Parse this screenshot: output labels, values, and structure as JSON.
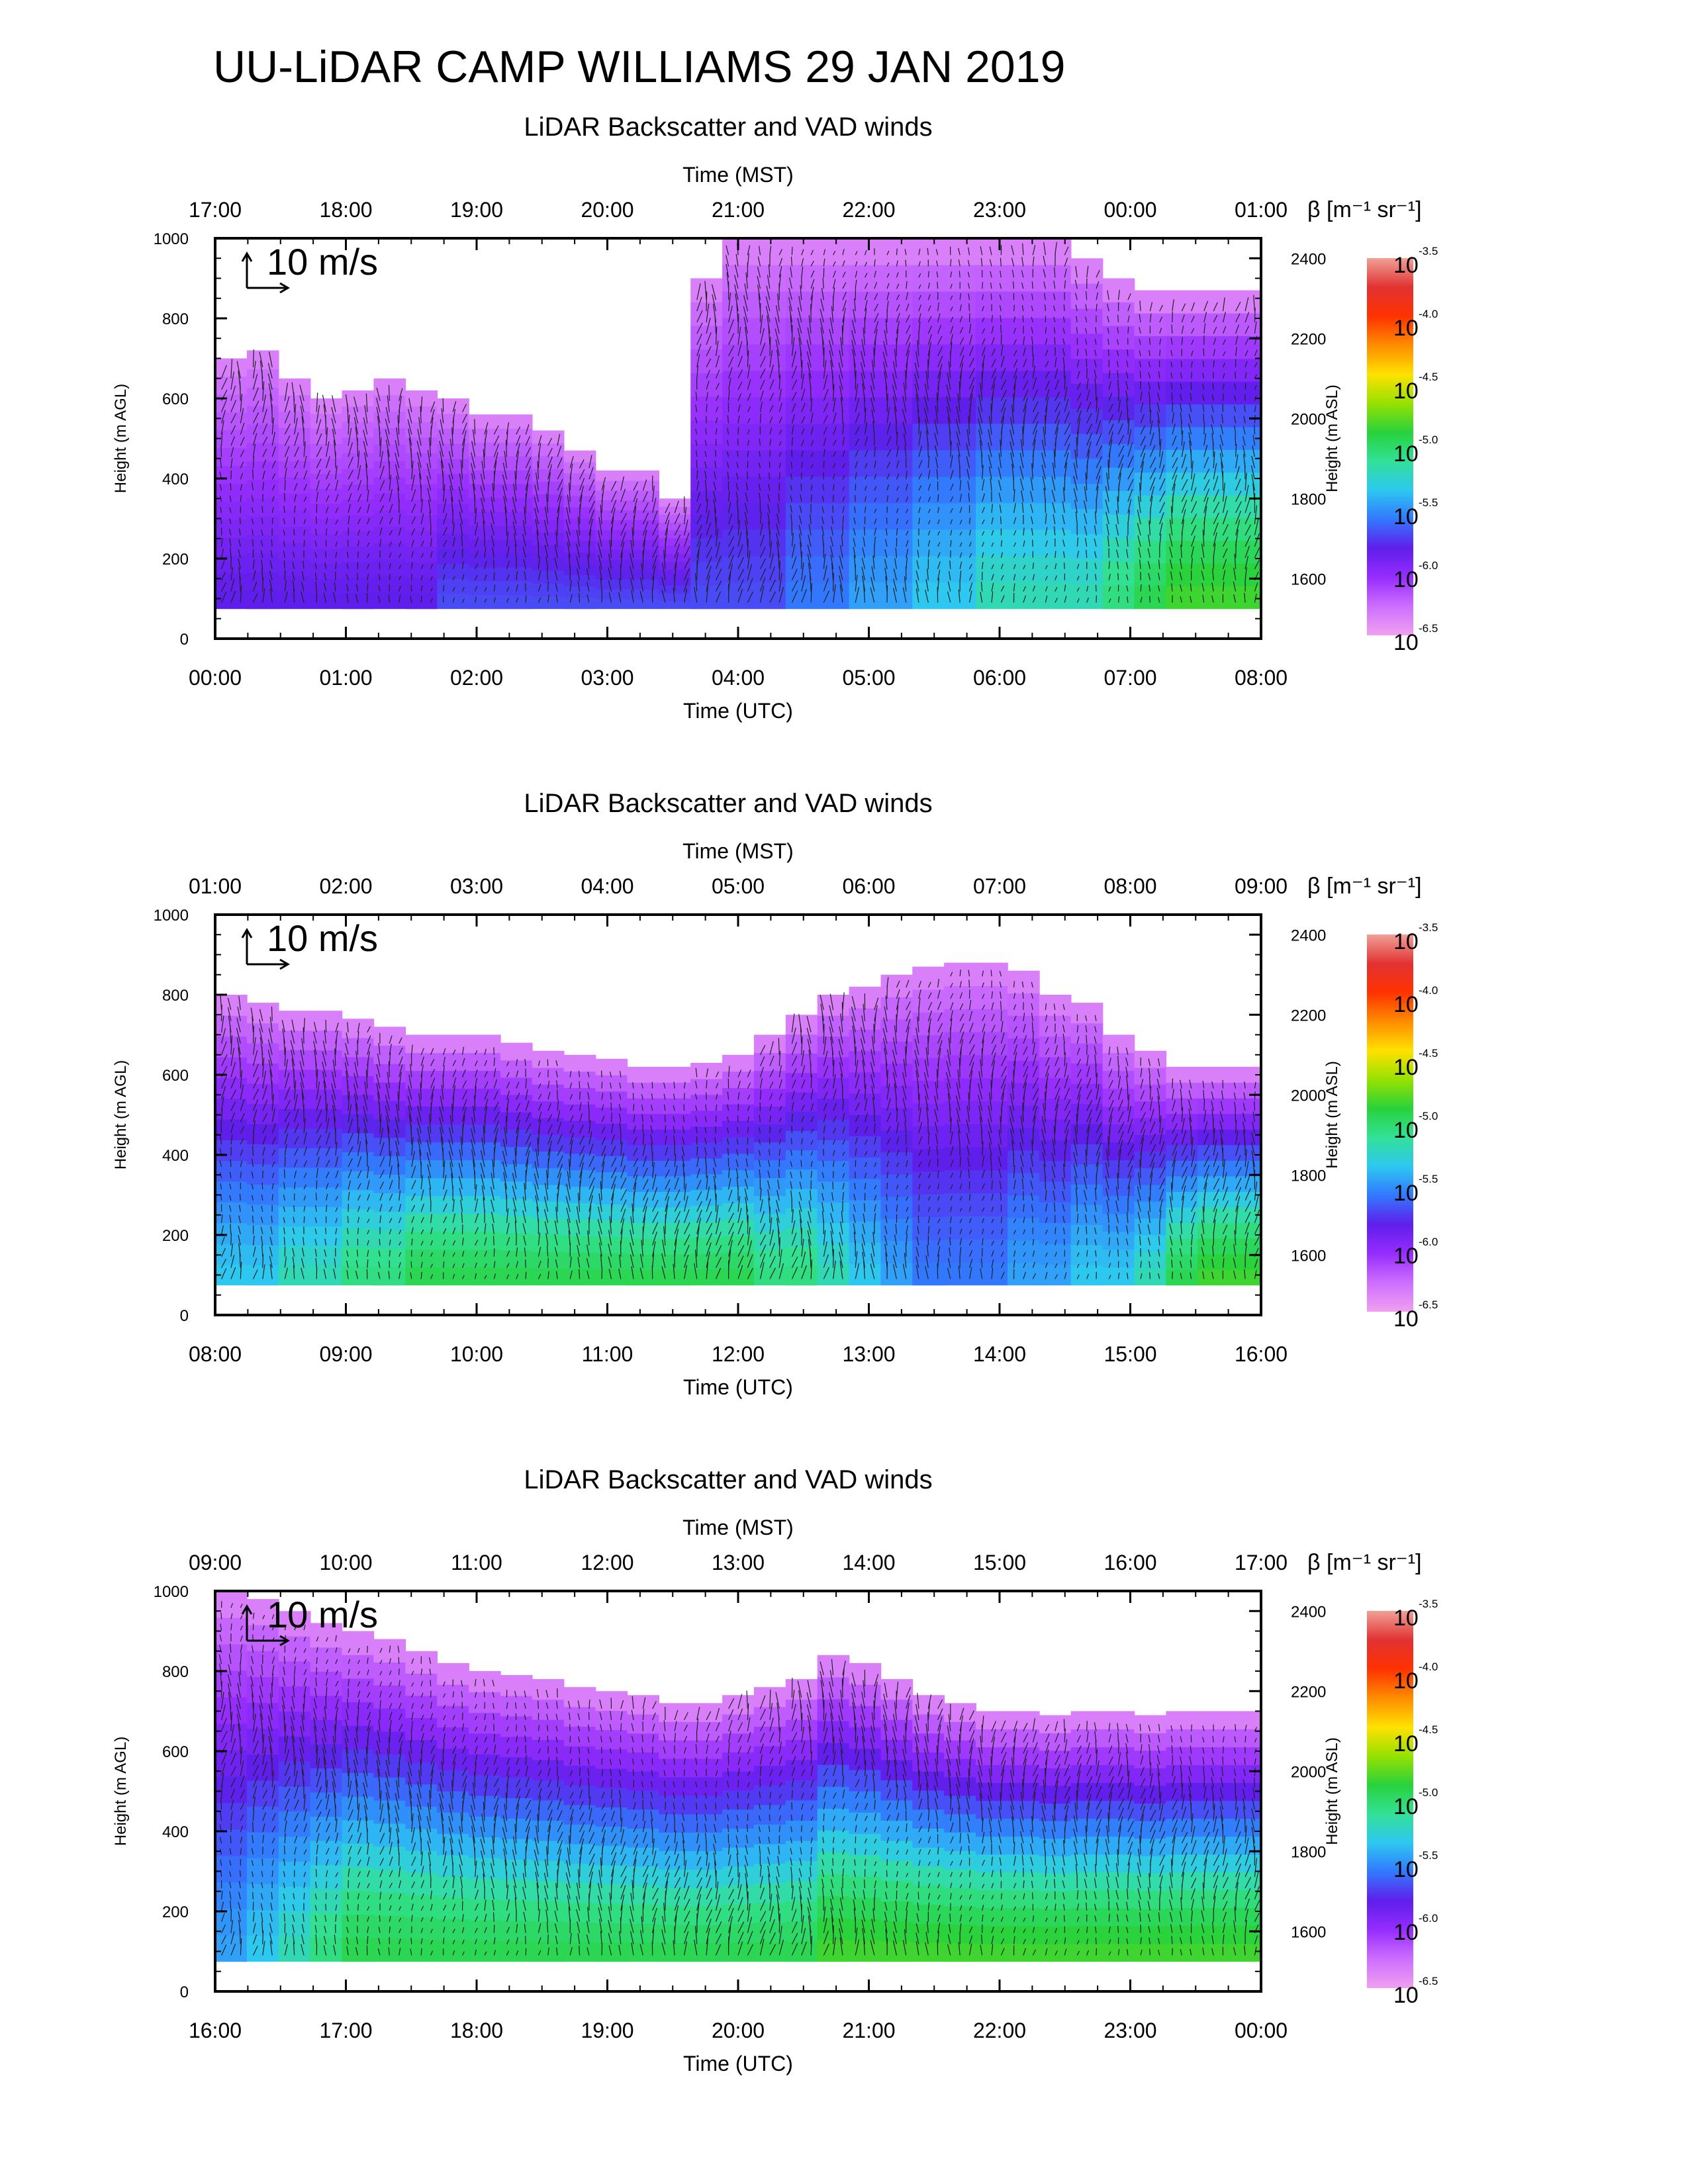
{
  "title": "UU-LiDAR CAMP WILLIAMS 29 JAN 2019",
  "colors": {
    "white_background": "#ffffff",
    "axis": "#000000",
    "vectors": "#222222",
    "colorbar_stops": [
      "#f0a0f0",
      "#d070ff",
      "#9933ff",
      "#6020e8",
      "#3080ff",
      "#30d0f0",
      "#30e090",
      "#20d030",
      "#a0e000",
      "#ffe000",
      "#ff9000",
      "#ff3000",
      "#e03030",
      "#f0a090"
    ]
  },
  "chart_data": [
    {
      "type": "heatmap",
      "title": "LiDAR Backscatter and VAD winds",
      "xlabel": "Time (UTC)",
      "x2label": "Time (MST)",
      "ylabel": "Height (m AGL)",
      "y2label": "Height (m ASL)",
      "x_ticks": [
        "00:00",
        "01:00",
        "02:00",
        "03:00",
        "04:00",
        "05:00",
        "06:00",
        "07:00",
        "08:00"
      ],
      "x2_ticks": [
        "17:00",
        "18:00",
        "19:00",
        "20:00",
        "21:00",
        "22:00",
        "23:00",
        "00:00",
        "01:00"
      ],
      "ylim": [
        0,
        1000
      ],
      "y_ticks": [
        "0",
        "200",
        "400",
        "600",
        "800",
        "1000"
      ],
      "y2lim": [
        1450,
        2450
      ],
      "y2_ticks": [
        "1600",
        "1800",
        "2000",
        "2200",
        "2400"
      ],
      "vector_key": "10 m/s",
      "colorbar": {
        "label": "β [m⁻¹ sr⁻¹]",
        "base": "10",
        "exponents": [
          "-3.5",
          "-4.0",
          "-4.5",
          "-5.0",
          "-5.5",
          "-6.0",
          "-6.5"
        ]
      },
      "data_top_height_m": [
        700,
        720,
        650,
        600,
        620,
        650,
        620,
        600,
        560,
        560,
        520,
        470,
        420,
        420,
        350,
        900,
        1000,
        1000,
        1000,
        1000,
        1000,
        1000,
        1000,
        1000,
        1000,
        1000,
        1000,
        950,
        900,
        870,
        870,
        870,
        870
      ],
      "log10_beta_low_layer": [
        -6.0,
        -6.0,
        -6.0,
        -6.0,
        -6.0,
        -6.0,
        -6.0,
        -5.9,
        -5.9,
        -5.9,
        -5.9,
        -5.9,
        -5.9,
        -5.9,
        -5.9,
        -5.9,
        -5.9,
        -5.9,
        -5.8,
        -5.8,
        -5.7,
        -5.7,
        -5.6,
        -5.6,
        -5.5,
        -5.5,
        -5.5,
        -5.5,
        -5.4,
        -5.3,
        -5.2,
        -5.2,
        -5.2
      ]
    },
    {
      "type": "heatmap",
      "title": "LiDAR Backscatter and VAD winds",
      "xlabel": "Time (UTC)",
      "x2label": "Time (MST)",
      "ylabel": "Height (m AGL)",
      "y2label": "Height (m ASL)",
      "x_ticks": [
        "08:00",
        "09:00",
        "10:00",
        "11:00",
        "12:00",
        "13:00",
        "14:00",
        "15:00",
        "16:00"
      ],
      "x2_ticks": [
        "01:00",
        "02:00",
        "03:00",
        "04:00",
        "05:00",
        "06:00",
        "07:00",
        "08:00",
        "09:00"
      ],
      "ylim": [
        0,
        1000
      ],
      "y_ticks": [
        "0",
        "200",
        "400",
        "600",
        "800",
        "1000"
      ],
      "y2lim": [
        1450,
        2450
      ],
      "y2_ticks": [
        "1600",
        "1800",
        "2000",
        "2200",
        "2400"
      ],
      "vector_key": "10 m/s",
      "colorbar": {
        "label": "β [m⁻¹ sr⁻¹]",
        "base": "10",
        "exponents": [
          "-3.5",
          "-4.0",
          "-4.5",
          "-5.0",
          "-5.5",
          "-6.0",
          "-6.5"
        ]
      },
      "data_top_height_m": [
        800,
        780,
        760,
        760,
        740,
        720,
        700,
        700,
        700,
        680,
        660,
        650,
        640,
        620,
        620,
        630,
        650,
        700,
        750,
        800,
        820,
        850,
        870,
        880,
        880,
        860,
        800,
        780,
        700,
        660,
        620,
        620,
        620
      ],
      "log10_beta_low_layer": [
        -5.6,
        -5.6,
        -5.5,
        -5.5,
        -5.4,
        -5.4,
        -5.3,
        -5.3,
        -5.3,
        -5.3,
        -5.3,
        -5.3,
        -5.3,
        -5.3,
        -5.3,
        -5.3,
        -5.3,
        -5.4,
        -5.4,
        -5.5,
        -5.6,
        -5.7,
        -5.8,
        -5.8,
        -5.8,
        -5.7,
        -5.7,
        -5.6,
        -5.6,
        -5.5,
        -5.3,
        -5.2,
        -5.2
      ]
    },
    {
      "type": "heatmap",
      "title": "LiDAR Backscatter and VAD winds",
      "xlabel": "Time (UTC)",
      "x2label": "Time (MST)",
      "ylabel": "Height (m AGL)",
      "y2label": "Height (m ASL)",
      "x_ticks": [
        "16:00",
        "17:00",
        "18:00",
        "19:00",
        "20:00",
        "21:00",
        "22:00",
        "23:00",
        "00:00"
      ],
      "x2_ticks": [
        "09:00",
        "10:00",
        "11:00",
        "12:00",
        "13:00",
        "14:00",
        "15:00",
        "16:00",
        "17:00"
      ],
      "ylim": [
        0,
        1000
      ],
      "y_ticks": [
        "0",
        "200",
        "400",
        "600",
        "800",
        "1000"
      ],
      "y2lim": [
        1450,
        2450
      ],
      "y2_ticks": [
        "1600",
        "1800",
        "2000",
        "2200",
        "2400"
      ],
      "vector_key": "10 m/s",
      "colorbar": {
        "label": "β [m⁻¹ sr⁻¹]",
        "base": "10",
        "exponents": [
          "-3.5",
          "-4.0",
          "-4.5",
          "-5.0",
          "-5.5",
          "-6.0",
          "-6.5"
        ]
      },
      "data_top_height_m": [
        1000,
        980,
        950,
        920,
        900,
        880,
        850,
        820,
        800,
        790,
        780,
        760,
        750,
        740,
        720,
        720,
        740,
        760,
        780,
        840,
        820,
        780,
        740,
        720,
        700,
        700,
        690,
        700,
        700,
        690,
        700,
        700,
        700
      ],
      "log10_beta_low_layer": [
        -5.7,
        -5.6,
        -5.5,
        -5.4,
        -5.3,
        -5.3,
        -5.3,
        -5.3,
        -5.3,
        -5.3,
        -5.3,
        -5.3,
        -5.3,
        -5.3,
        -5.3,
        -5.3,
        -5.3,
        -5.3,
        -5.3,
        -5.2,
        -5.2,
        -5.2,
        -5.2,
        -5.2,
        -5.2,
        -5.2,
        -5.2,
        -5.2,
        -5.2,
        -5.2,
        -5.2,
        -5.2,
        -5.2
      ]
    }
  ]
}
